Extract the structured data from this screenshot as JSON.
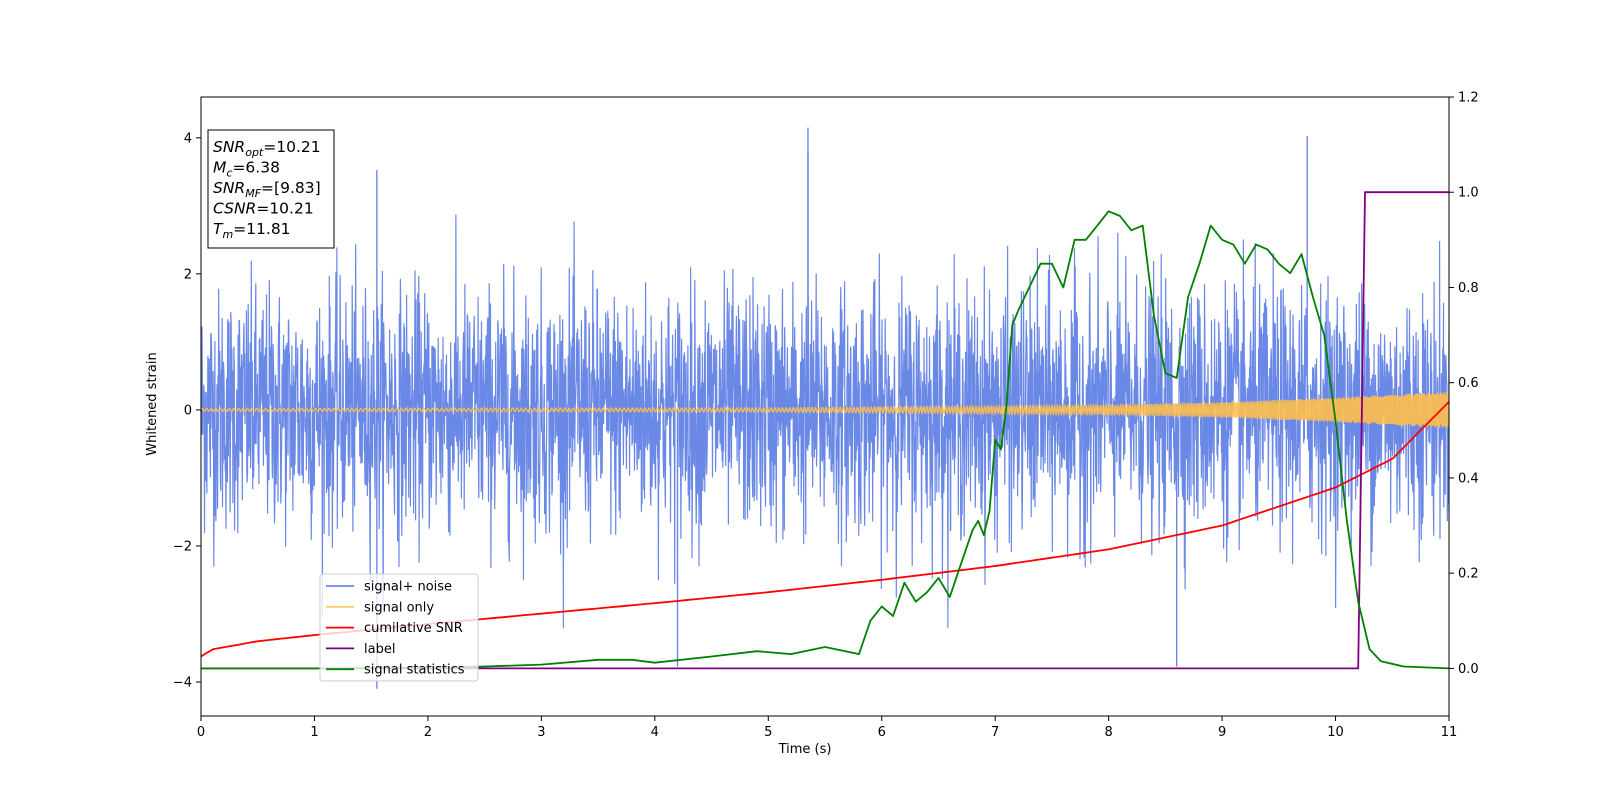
{
  "chart_data": {
    "type": "line",
    "title": "",
    "xlabel": "Time (s)",
    "ylabel": "Whitened strain",
    "ylabel_right": "",
    "xlim": [
      0,
      11
    ],
    "ylim": [
      -4.5,
      4.6
    ],
    "ylim_right": [
      -0.1,
      1.2
    ],
    "xticks": [
      0,
      1,
      2,
      3,
      4,
      5,
      6,
      7,
      8,
      9,
      10,
      11
    ],
    "yticks": [
      -4,
      -2,
      0,
      2,
      4
    ],
    "yticks_right": [
      0.0,
      0.2,
      0.4,
      0.6,
      0.8,
      1.0,
      1.2
    ],
    "ytick_labels": [
      "−4",
      "−2",
      "0",
      "2",
      "4"
    ],
    "ytick_labels_right": [
      "0.0",
      "0.2",
      "0.4",
      "0.6",
      "0.8",
      "1.0",
      "1.2"
    ],
    "grid": false,
    "legend_position": "lower-left",
    "info_box": {
      "lines": [
        {
          "base": "SNR",
          "sub": "opt",
          "value": "=10.21"
        },
        {
          "base": "M",
          "sub": "c",
          "value": "=6.38"
        },
        {
          "base": "SNR",
          "sub": "MF",
          "value": "=[9.83]"
        },
        {
          "base": "CSNR",
          "sub": "",
          "value": "=10.21"
        },
        {
          "base": "T",
          "sub": "m",
          "value": "=11.81"
        }
      ]
    },
    "series": [
      {
        "name": "signal+ noise",
        "axis": "left",
        "color": "#6a88e6",
        "kind": "noise-band",
        "envelope": {
          "typical_amplitude": 1.25,
          "max_positive": 4.15,
          "min_negative": -4.1,
          "spike_times": [
            1.55,
            4.2,
            5.35,
            8.6,
            9.75
          ]
        }
      },
      {
        "name": "signal only",
        "axis": "left",
        "color": "#ffc04d",
        "kind": "chirp",
        "amplitude": {
          "x": [
            0,
            5,
            8,
            9,
            10,
            11
          ],
          "y": [
            0.02,
            0.03,
            0.07,
            0.11,
            0.18,
            0.27
          ]
        }
      },
      {
        "name": "cumilative SNR",
        "axis": "right",
        "color": "#ff0000",
        "kind": "line",
        "x": [
          0,
          0.1,
          0.5,
          1,
          2,
          3,
          4,
          5,
          6,
          7,
          8,
          9,
          10,
          10.5,
          11
        ],
        "y": [
          0.025,
          0.04,
          0.057,
          0.07,
          0.093,
          0.115,
          0.137,
          0.16,
          0.186,
          0.215,
          0.25,
          0.3,
          0.38,
          0.44,
          0.56
        ]
      },
      {
        "name": "label",
        "axis": "right",
        "color": "#800080",
        "kind": "line",
        "x": [
          0,
          10.2,
          10.26,
          11
        ],
        "y": [
          0,
          0,
          1,
          1
        ]
      },
      {
        "name": "signal statistics",
        "axis": "right",
        "color": "#008000",
        "kind": "line",
        "x": [
          0,
          1,
          2,
          2.5,
          3,
          3.5,
          3.8,
          4,
          4.5,
          4.9,
          5.2,
          5.5,
          5.8,
          5.9,
          6.0,
          6.1,
          6.2,
          6.3,
          6.4,
          6.5,
          6.6,
          6.7,
          6.8,
          6.85,
          6.9,
          6.95,
          7.0,
          7.05,
          7.1,
          7.15,
          7.2,
          7.3,
          7.4,
          7.5,
          7.6,
          7.7,
          7.8,
          7.9,
          8.0,
          8.1,
          8.2,
          8.3,
          8.4,
          8.5,
          8.6,
          8.7,
          8.8,
          8.9,
          9.0,
          9.1,
          9.2,
          9.3,
          9.4,
          9.5,
          9.6,
          9.7,
          9.8,
          9.9,
          10.0,
          10.1,
          10.2,
          10.3,
          10.4,
          10.6,
          11
        ],
        "y": [
          0.0,
          0.0,
          0.002,
          0.004,
          0.008,
          0.018,
          0.018,
          0.012,
          0.025,
          0.036,
          0.03,
          0.045,
          0.03,
          0.1,
          0.13,
          0.11,
          0.18,
          0.14,
          0.16,
          0.19,
          0.15,
          0.22,
          0.29,
          0.31,
          0.28,
          0.33,
          0.48,
          0.46,
          0.55,
          0.72,
          0.75,
          0.8,
          0.85,
          0.85,
          0.8,
          0.9,
          0.9,
          0.93,
          0.96,
          0.95,
          0.92,
          0.93,
          0.74,
          0.62,
          0.61,
          0.78,
          0.85,
          0.93,
          0.9,
          0.89,
          0.85,
          0.89,
          0.88,
          0.85,
          0.83,
          0.87,
          0.78,
          0.7,
          0.52,
          0.31,
          0.14,
          0.04,
          0.015,
          0.004,
          0.0
        ]
      }
    ]
  }
}
